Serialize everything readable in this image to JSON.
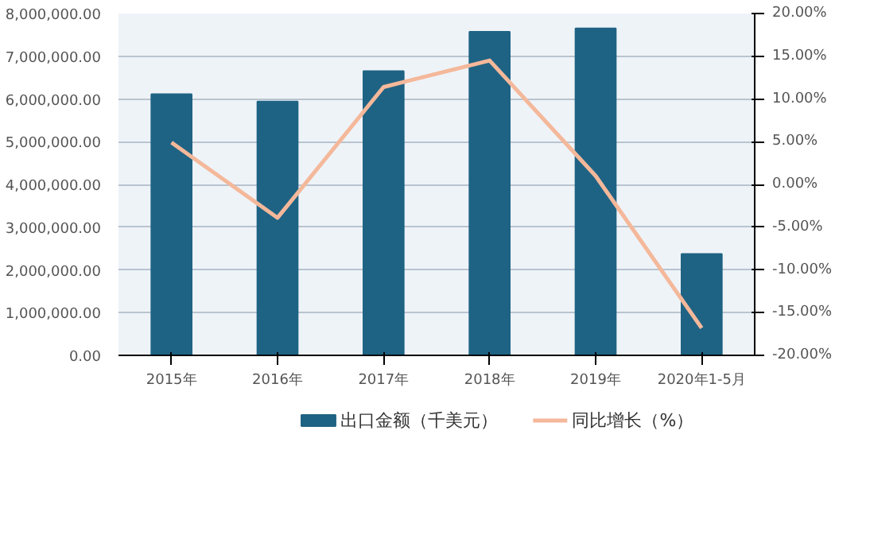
{
  "chart_data": {
    "type": "bar",
    "categories": [
      "2015年",
      "2016年",
      "2017年",
      "2018年",
      "2019年",
      "2020年1-5月"
    ],
    "series": [
      {
        "name": "出口金额（千美元）",
        "color": "#1f6384",
        "values": [
          6110000,
          5940000,
          6650000,
          7570000,
          7650000,
          2370000
        ]
      },
      {
        "name": "同比增长（%）",
        "type": "line",
        "axis": "y2",
        "color": "#f4b89a",
        "values": [
          4.9,
          -3.9,
          11.4,
          14.5,
          1.0,
          -16.8
        ]
      }
    ],
    "ylim": [
      0,
      8000000
    ],
    "yticks": [
      {
        "value": 0,
        "label": "0.00"
      },
      {
        "value": 1000000,
        "label": "1,000,000.00"
      },
      {
        "value": 2000000,
        "label": "2,000,000.00"
      },
      {
        "value": 3000000,
        "label": "3,000,000.00"
      },
      {
        "value": 4000000,
        "label": "4,000,000.00"
      },
      {
        "value": 5000000,
        "label": "5,000,000.00"
      },
      {
        "value": 6000000,
        "label": "6,000,000.00"
      },
      {
        "value": 7000000,
        "label": "7,000,000.00"
      },
      {
        "value": 8000000,
        "label": "8,000,000.00"
      }
    ],
    "y2lim": [
      -20,
      20
    ],
    "y2ticks": [
      {
        "value": -20,
        "label": "-20.00%"
      },
      {
        "value": -15,
        "label": "-15.00%"
      },
      {
        "value": -10,
        "label": "-10.00%"
      },
      {
        "value": -5,
        "label": "-5.00%"
      },
      {
        "value": 0,
        "label": "0.00%"
      },
      {
        "value": 5,
        "label": "5.00%"
      },
      {
        "value": 10,
        "label": "10.00%"
      },
      {
        "value": 15,
        "label": "15.00%"
      },
      {
        "value": 20,
        "label": "20.00%"
      }
    ],
    "grid": "y",
    "legend": "bottom",
    "line_style": "solid"
  }
}
